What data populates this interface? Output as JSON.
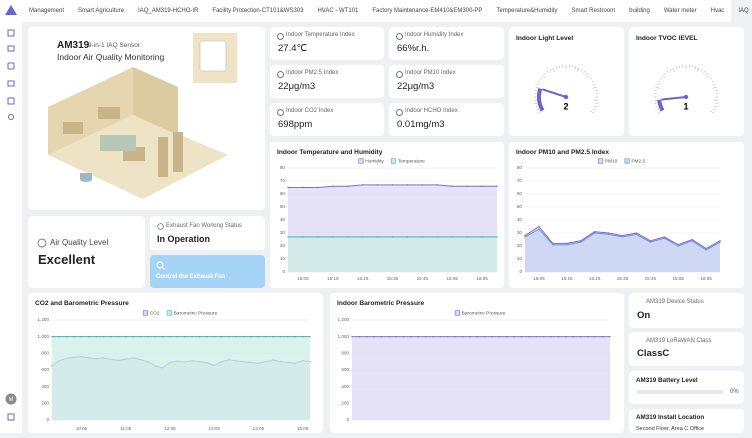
{
  "tabs": [
    {
      "label": "Management"
    },
    {
      "label": "Smart Agriculture"
    },
    {
      "label": "IAQ_AM319-HCHO-IR"
    },
    {
      "label": "Facility Protection-CT101&WS303"
    },
    {
      "label": "HVAC - WT101"
    },
    {
      "label": "Factory Maintenance-EM410&EM300-PP"
    },
    {
      "label": "Temperature&Humidity"
    },
    {
      "label": "Smart Restroom"
    },
    {
      "label": "building"
    },
    {
      "label": "Water meter"
    },
    {
      "label": "Hvac"
    },
    {
      "label": "IAQ",
      "active": true
    }
  ],
  "user_initial": "M",
  "hero": {
    "model": "AM319",
    "subtitle": "9-in-1 IAQ Sensor",
    "title": "Indoor Air Quality Monitoring"
  },
  "metrics": [
    {
      "label": "Indoor Temperature Index",
      "value": "27.4℃"
    },
    {
      "label": "Indoor Humidity Index",
      "value": "66%r.h."
    },
    {
      "label": "Indoor PM2.5 Index",
      "value": "22μg/m3"
    },
    {
      "label": "Indoor PM10 Index",
      "value": "22μg/m3"
    },
    {
      "label": "Indoor CO2 Index",
      "value": "698ppm"
    },
    {
      "label": "Indoor HCHO Index",
      "value": "0.01mg/m3"
    }
  ],
  "air_quality": {
    "label": "Air Quality Level",
    "value": "Excellent"
  },
  "fan": {
    "label": "Exhaust Fan Working Status",
    "value": "In Operation",
    "button": "Control the Exhaust Fan"
  },
  "status_cards": [
    {
      "label": "AM319 Device Status",
      "value": "On"
    },
    {
      "label": "AM319 LoRaWAN Class",
      "value": "ClassC"
    },
    {
      "label": "AM319 Install Location",
      "value": "Second Floor, Area C Office"
    }
  ],
  "battery": {
    "label": "AM319 Battery Level",
    "value": 0,
    "value_label": "0%",
    "xlim": [
      0,
      100
    ]
  },
  "chart_data": [
    {
      "type": "gauge",
      "title": "Indoor Light Level",
      "value": 2,
      "ylim": [
        0,
        10
      ],
      "color": "#6f63d0"
    },
    {
      "type": "gauge",
      "title": "Indoor TVOC lEVEL",
      "value": 1,
      "ylim": [
        0,
        10
      ],
      "color": "#6f63d0"
    },
    {
      "type": "line",
      "title": "Indoor Temperature and Humidity",
      "grid": true,
      "ylim": [
        0,
        80
      ],
      "yticks": [
        0,
        10,
        20,
        30,
        40,
        50,
        60,
        70,
        80
      ],
      "categories": [
        null,
        "15:05",
        null,
        "15:15",
        null,
        "15:25",
        null,
        "15:35",
        null,
        "15:45",
        null,
        "15:55",
        null,
        "16:05",
        null
      ],
      "series": [
        {
          "name": "Humidity",
          "color": "#7b6fd6",
          "area_color": "#ddd8f6",
          "values": [
            65,
            65,
            65,
            66,
            66,
            67,
            67,
            67,
            67,
            67,
            67,
            66,
            66,
            66,
            66
          ]
        },
        {
          "name": "Temperature",
          "color": "#3fb5a3",
          "area_color": "#cdeee6",
          "values": [
            27,
            27,
            27,
            27,
            27,
            27,
            27,
            27,
            27,
            27,
            27,
            27,
            27,
            27,
            27
          ]
        }
      ]
    },
    {
      "type": "line",
      "title": "Indoor PM10 and PM2.5 Index",
      "grid": true,
      "ylim": [
        0,
        80
      ],
      "yticks": [
        0,
        10,
        20,
        30,
        40,
        50,
        60,
        70,
        80
      ],
      "categories": [
        null,
        "15:05",
        null,
        "15:15",
        null,
        "15:25",
        null,
        "15:35",
        null,
        "15:45",
        null,
        "15:55",
        null,
        "16:05",
        null
      ],
      "series": [
        {
          "name": "PM10",
          "color": "#7b6fd6",
          "area_color": "#ddd8f6",
          "values": [
            28,
            35,
            22,
            22,
            24,
            31,
            30,
            28,
            30,
            24,
            27,
            21,
            25,
            18,
            24
          ]
        },
        {
          "name": "PM2.5",
          "color": "#6d8fd8",
          "area_color": "#c6d3f1",
          "values": [
            27,
            33,
            21,
            21,
            23,
            30,
            29,
            27,
            29,
            23,
            26,
            20,
            24,
            17,
            23
          ]
        }
      ]
    },
    {
      "type": "line",
      "title": "CO2 and Barometric Pressure",
      "grid": true,
      "ylim": [
        0,
        1200
      ],
      "yticks": [
        0,
        200,
        400,
        600,
        800,
        {
          "value": 1000,
          "label": "1,000"
        },
        {
          "value": 1200,
          "label": "1,200"
        }
      ],
      "categories": [
        null,
        null,
        null,
        null,
        "10:05",
        null,
        null,
        null,
        null,
        null,
        "11:05",
        null,
        null,
        null,
        null,
        null,
        "12:05",
        null,
        null,
        null,
        null,
        null,
        "13:05",
        null,
        null,
        null,
        null,
        null,
        "14:05",
        null,
        null,
        null,
        null,
        null,
        "15:05",
        null
      ],
      "series": [
        {
          "name": "CO2",
          "color": "#7b6fd6",
          "area_color": "#ddd8f6",
          "values": [
            650,
            710,
            740,
            755,
            760,
            745,
            735,
            745,
            725,
            715,
            730,
            745,
            725,
            700,
            650,
            625,
            690,
            705,
            695,
            712,
            700,
            688,
            655,
            700,
            722,
            710,
            700,
            690,
            680,
            700,
            720,
            702,
            690,
            680,
            712,
            700
          ]
        },
        {
          "name": "Barometric Pressure",
          "color": "#3fb5a3",
          "area_color": "#cdeee6",
          "values": [
            1000,
            1000,
            1000,
            1000,
            1000,
            1000,
            1000,
            1000,
            1000,
            1000,
            1000,
            1000,
            1000,
            1000,
            1000,
            1000,
            1000,
            1000,
            1000,
            1000,
            1000,
            1000,
            1000,
            1000,
            1000,
            1000,
            1000,
            1000,
            1000,
            1000,
            1000,
            1000,
            1000,
            1000,
            1000,
            1000
          ]
        }
      ]
    },
    {
      "type": "line",
      "title": "Indoor Barometric Pressure",
      "grid": true,
      "ylim": [
        0,
        1200
      ],
      "yticks": [
        0,
        200,
        400,
        600,
        800,
        {
          "value": 1000,
          "label": "1,000"
        },
        {
          "value": 1200,
          "label": "1,200"
        }
      ],
      "series": [
        {
          "name": "Barometric Pressure",
          "color": "#7b6fd6",
          "area_color": "#ddd8f6",
          "values": [
            1000,
            1000,
            1000,
            1000,
            1000,
            1000,
            1000,
            1000,
            1000,
            1000,
            1000,
            1000,
            1000,
            1000,
            1000,
            1000,
            1000,
            1000,
            1000,
            1000,
            1000,
            1000,
            1000,
            1000,
            1000,
            1000,
            1000,
            1000,
            1000,
            1000,
            1000,
            1000,
            1000,
            1000,
            1000,
            1000
          ]
        }
      ]
    }
  ]
}
